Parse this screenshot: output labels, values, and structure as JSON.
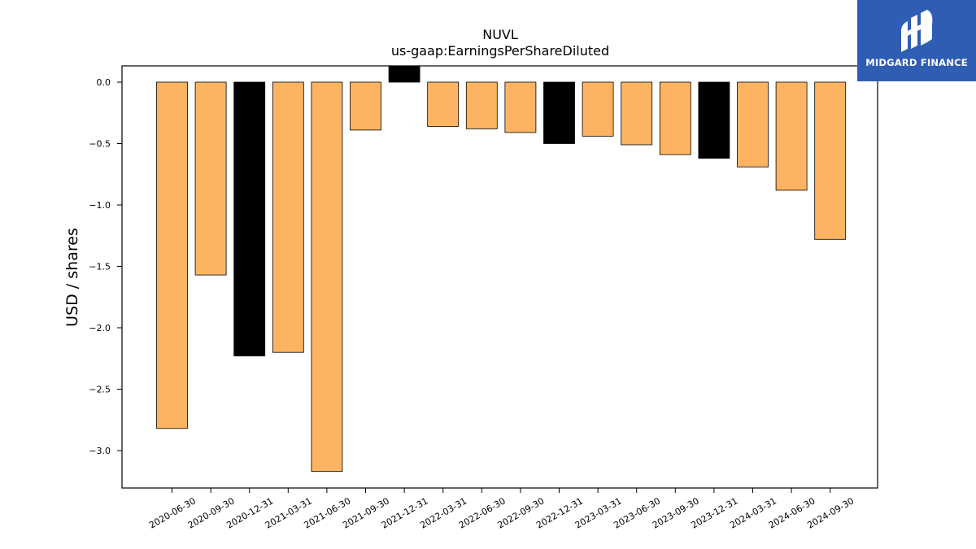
{
  "chart_data": {
    "type": "bar",
    "title": "NUVL",
    "subtitle": "us-gaap:EarningsPerShareDiluted",
    "xlabel": "",
    "ylabel": "USD / shares",
    "ylim": [
      -3.3,
      0.13
    ],
    "yticks": [
      "0.0",
      "−0.5",
      "−1.0",
      "−1.5",
      "−2.0",
      "−2.5",
      "−3.0"
    ],
    "ytick_values": [
      0.0,
      -0.5,
      -1.0,
      -1.5,
      -2.0,
      -2.5,
      -3.0
    ],
    "categories": [
      "2020-06-30",
      "2020-09-30",
      "2020-12-31",
      "2021-03-31",
      "2021-06-30",
      "2021-09-30",
      "2021-12-31",
      "2022-03-31",
      "2022-06-30",
      "2022-09-30",
      "2022-12-31",
      "2023-03-31",
      "2023-06-30",
      "2023-09-30",
      "2023-12-31",
      "2024-03-31",
      "2024-06-30",
      "2024-09-30"
    ],
    "values": [
      -2.82,
      -1.57,
      -2.23,
      -2.2,
      -3.17,
      -0.39,
      0.13,
      -0.36,
      -0.38,
      -0.41,
      -0.5,
      -0.44,
      -0.51,
      -0.59,
      -0.62,
      -0.69,
      -0.88,
      -1.28
    ],
    "bar_colors": [
      "#fdb462",
      "#fdb462",
      "#000000",
      "#fdb462",
      "#fdb462",
      "#fdb462",
      "#000000",
      "#fdb462",
      "#fdb462",
      "#fdb462",
      "#000000",
      "#fdb462",
      "#fdb462",
      "#fdb462",
      "#000000",
      "#fdb462",
      "#fdb462",
      "#fdb462"
    ],
    "grid": false,
    "legend": "none"
  },
  "logo": {
    "text": "MIDGARD FINANCE",
    "icon": "midgard-logo-icon",
    "background": "#2f5db4"
  }
}
